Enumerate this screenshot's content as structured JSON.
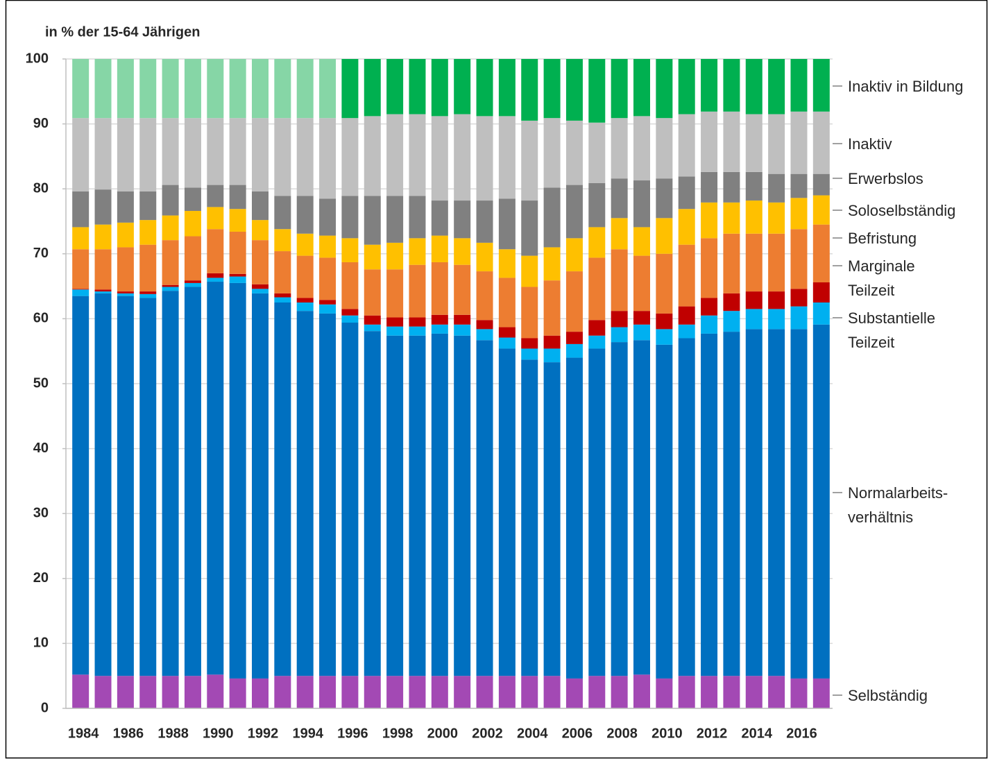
{
  "chart_data": {
    "type": "stacked-bar",
    "y_axis_label": "in % der 15-64 Jährigen",
    "categories": [
      "1984",
      null,
      "1986",
      null,
      "1988",
      null,
      "1990",
      null,
      "1992",
      null,
      "1994",
      null,
      "1996",
      null,
      "1998",
      null,
      "2000",
      null,
      "2002",
      null,
      "2004",
      null,
      "2006",
      null,
      "2008",
      null,
      "2010",
      null,
      "2012",
      null,
      "2014",
      null,
      "2016",
      null
    ],
    "ylim": [
      0,
      100
    ],
    "yticks": [
      0,
      10,
      20,
      30,
      40,
      50,
      60,
      70,
      80,
      90,
      100
    ],
    "grid": true,
    "series": [
      {
        "name": "Selbständig",
        "color": "#a349b4",
        "values": [
          5.2,
          5.0,
          5.0,
          5.0,
          5.0,
          5.0,
          5.2,
          4.6,
          4.6,
          5.0,
          5.0,
          5.0,
          5.0,
          5.0,
          5.0,
          5.0,
          5.0,
          5.0,
          5.0,
          5.0,
          5.0,
          5.0,
          4.6,
          5.0,
          5.0,
          5.2,
          4.6,
          5.0,
          5.0,
          5.0,
          5.0,
          5.0,
          4.6,
          4.6
        ]
      },
      {
        "name": "Normalarbeits-\nverhältnis",
        "color": "#0070c0",
        "values": [
          58.3,
          58.9,
          58.5,
          58.2,
          59.3,
          59.9,
          60.5,
          60.9,
          59.3,
          57.5,
          56.2,
          55.8,
          54.4,
          53.1,
          52.4,
          52.4,
          52.7,
          52.4,
          51.7,
          50.4,
          48.7,
          48.3,
          49.4,
          50.4,
          51.4,
          51.5,
          51.4,
          52.0,
          52.7,
          53.0,
          53.4,
          53.4,
          53.8,
          54.5
        ]
      },
      {
        "name": "Substantielle\nTeilzeit",
        "color": "#00b0f0",
        "values": [
          1.0,
          0.3,
          0.4,
          0.6,
          0.6,
          0.6,
          0.6,
          1.0,
          0.7,
          0.8,
          1.3,
          1.4,
          1.1,
          1.0,
          1.4,
          1.4,
          1.4,
          1.7,
          1.7,
          1.7,
          1.7,
          2.1,
          2.1,
          2.0,
          2.3,
          2.4,
          2.4,
          2.1,
          2.8,
          3.2,
          3.1,
          3.1,
          3.5,
          3.4
        ]
      },
      {
        "name": "Marginale\nTeilzeit",
        "color": "#c00000",
        "values": [
          0.1,
          0.3,
          0.3,
          0.4,
          0.3,
          0.4,
          0.7,
          0.4,
          0.7,
          0.6,
          0.7,
          0.7,
          1.0,
          1.4,
          1.4,
          1.4,
          1.5,
          1.5,
          1.4,
          1.6,
          1.6,
          2.0,
          1.9,
          2.4,
          2.5,
          2.1,
          2.4,
          2.8,
          2.7,
          2.7,
          2.7,
          2.7,
          2.7,
          3.1
        ]
      },
      {
        "name": "Befristung",
        "color": "#ed7d31",
        "values": [
          6.1,
          6.2,
          6.8,
          7.2,
          6.9,
          6.8,
          6.8,
          6.5,
          6.8,
          6.5,
          6.5,
          6.5,
          7.2,
          7.1,
          7.4,
          8.1,
          8.1,
          7.7,
          7.5,
          7.6,
          7.9,
          8.5,
          9.3,
          9.6,
          9.5,
          8.5,
          9.2,
          9.5,
          9.2,
          9.2,
          8.9,
          8.9,
          9.2,
          8.9
        ]
      },
      {
        "name": "Soloselbständig",
        "color": "#ffc000",
        "values": [
          3.4,
          3.8,
          3.8,
          3.8,
          3.8,
          3.9,
          3.4,
          3.5,
          3.1,
          3.4,
          3.4,
          3.4,
          3.7,
          3.8,
          4.1,
          4.1,
          4.1,
          4.1,
          4.4,
          4.4,
          4.8,
          5.1,
          5.1,
          4.7,
          4.8,
          4.4,
          5.5,
          5.5,
          5.5,
          4.8,
          5.1,
          4.8,
          4.8,
          4.5
        ]
      },
      {
        "name": "Erwerbslos",
        "color": "#808080",
        "values": [
          5.5,
          5.4,
          4.8,
          4.4,
          4.7,
          3.6,
          3.4,
          3.7,
          4.4,
          5.1,
          5.8,
          5.7,
          6.5,
          7.5,
          7.2,
          6.5,
          5.4,
          5.8,
          6.5,
          7.8,
          8.5,
          9.2,
          8.2,
          6.8,
          6.1,
          7.2,
          6.1,
          5.0,
          4.7,
          4.7,
          4.4,
          4.4,
          3.7,
          3.3
        ]
      },
      {
        "name": "Inaktiv",
        "color": "#bfbfbf",
        "values": [
          11.3,
          11.0,
          11.3,
          11.3,
          10.3,
          10.7,
          10.3,
          10.3,
          11.3,
          12.0,
          12.0,
          12.4,
          12.0,
          12.3,
          12.6,
          12.6,
          13.0,
          13.3,
          13.0,
          12.7,
          12.3,
          10.7,
          9.9,
          9.3,
          9.3,
          9.9,
          9.3,
          9.6,
          9.3,
          9.3,
          8.9,
          9.2,
          9.6,
          9.6
        ]
      },
      {
        "name": "Inaktiv in Bildung",
        "color": "#00b050",
        "colors": [
          "#86d6a6",
          "#86d6a6",
          "#86d6a6",
          "#86d6a6",
          "#86d6a6",
          "#86d6a6",
          "#86d6a6",
          "#86d6a6",
          "#86d6a6",
          "#86d6a6",
          "#86d6a6",
          "#86d6a6",
          "#00b050",
          "#00b050",
          "#00b050",
          "#00b050",
          "#00b050",
          "#00b050",
          "#00b050",
          "#00b050",
          "#00b050",
          "#00b050",
          "#00b050",
          "#00b050",
          "#00b050",
          "#00b050",
          "#00b050",
          "#00b050",
          "#00b050",
          "#00b050",
          "#00b050",
          "#00b050",
          "#00b050",
          "#00b050"
        ],
        "values": [
          9.1,
          9.1,
          9.1,
          9.1,
          9.1,
          9.1,
          9.1,
          9.1,
          9.1,
          9.1,
          9.1,
          9.1,
          9.1,
          8.8,
          8.5,
          8.5,
          8.8,
          8.5,
          8.8,
          8.8,
          9.5,
          9.1,
          9.5,
          9.8,
          9.1,
          8.8,
          9.1,
          8.5,
          8.1,
          8.1,
          8.5,
          8.5,
          8.1,
          8.1
        ]
      }
    ]
  }
}
